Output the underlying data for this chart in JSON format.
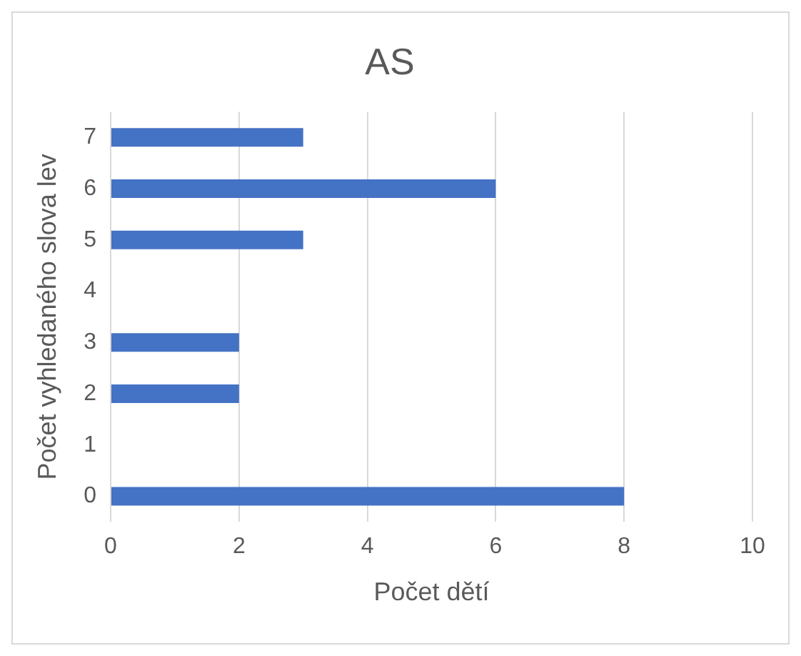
{
  "chart_data": {
    "type": "bar",
    "orientation": "horizontal",
    "title": "AS",
    "xlabel": "Počet dětí",
    "ylabel": "Počet vyhledaného slova lev",
    "categories": [
      "7",
      "6",
      "5",
      "4",
      "3",
      "2",
      "1",
      "0"
    ],
    "values": [
      3,
      6,
      3,
      0,
      2,
      2,
      0,
      8
    ],
    "color": "#4472c4",
    "xlim": [
      0,
      10
    ],
    "xticks": [
      0,
      2,
      4,
      6,
      8,
      10
    ],
    "grid": "x",
    "legend": false
  }
}
